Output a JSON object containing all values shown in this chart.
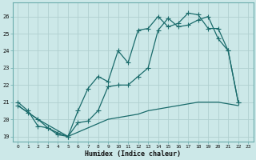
{
  "xlabel": "Humidex (Indice chaleur)",
  "bg_color": "#cce8e8",
  "line_color": "#1a6b6b",
  "grid_color": "#b0d0d0",
  "xlim": [
    -0.5,
    23.5
  ],
  "ylim": [
    18.7,
    26.8
  ],
  "yticks": [
    19,
    20,
    21,
    22,
    23,
    24,
    25,
    26
  ],
  "xticks": [
    0,
    1,
    2,
    3,
    4,
    5,
    6,
    7,
    8,
    9,
    10,
    11,
    12,
    13,
    14,
    15,
    16,
    17,
    18,
    19,
    20,
    21,
    22,
    23
  ],
  "line1_x": [
    0,
    1,
    2,
    3,
    4,
    5,
    6,
    7,
    8,
    9,
    10,
    11,
    12,
    13,
    14,
    15,
    16,
    17,
    18,
    19,
    20,
    21,
    22
  ],
  "line1_y": [
    20.8,
    20.4,
    20.0,
    19.5,
    19.1,
    19.0,
    20.5,
    21.8,
    22.5,
    22.2,
    24.0,
    23.3,
    25.2,
    25.3,
    26.0,
    25.4,
    25.6,
    26.2,
    26.1,
    25.3,
    25.3,
    24.0,
    21.0
  ],
  "line2_x": [
    0,
    1,
    2,
    3,
    4,
    5,
    6,
    7,
    8,
    9,
    10,
    11,
    12,
    13,
    14,
    15,
    16,
    17,
    18,
    19,
    20,
    21,
    22
  ],
  "line2_y": [
    21.0,
    20.5,
    19.6,
    19.5,
    19.2,
    19.0,
    19.8,
    19.9,
    20.5,
    21.9,
    22.0,
    22.0,
    22.5,
    23.0,
    25.2,
    25.9,
    25.4,
    25.5,
    25.8,
    26.0,
    24.7,
    24.0,
    21.0
  ],
  "line3_x": [
    0,
    2,
    5,
    9,
    10,
    11,
    12,
    13,
    14,
    15,
    16,
    17,
    18,
    19,
    20,
    22
  ],
  "line3_y": [
    20.8,
    20.0,
    19.0,
    20.0,
    20.1,
    20.2,
    20.3,
    20.5,
    20.6,
    20.7,
    20.8,
    20.9,
    21.0,
    21.0,
    21.0,
    20.8
  ]
}
